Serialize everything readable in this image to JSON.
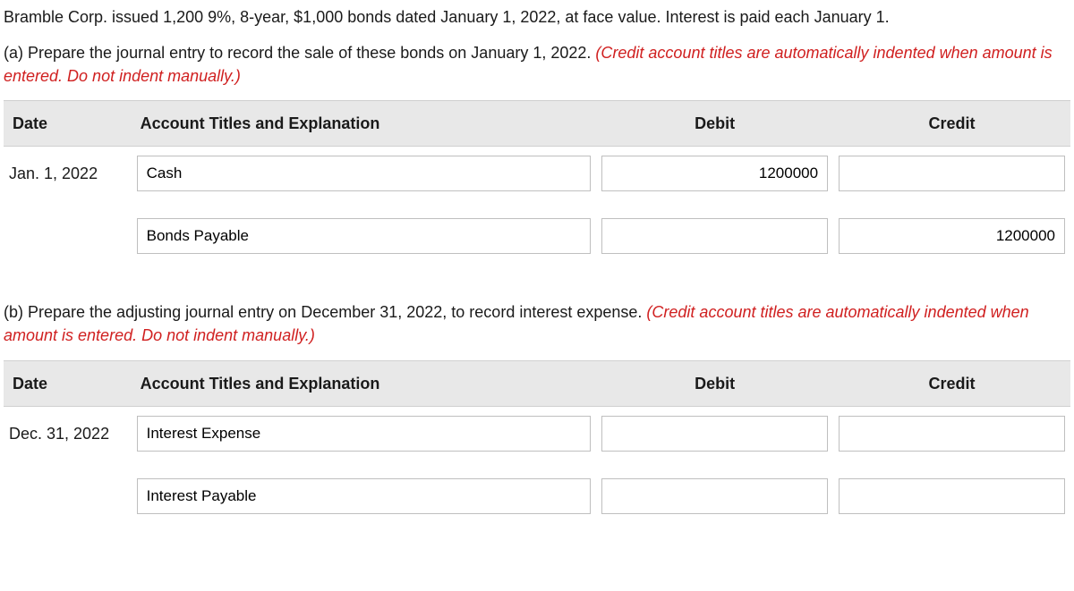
{
  "intro_text": "Bramble Corp. issued 1,200 9%, 8-year, $1,000 bonds dated January 1, 2022, at face value. Interest is paid each January 1.",
  "part_a": {
    "prefix": "(a) Prepare the journal entry to record the sale of these bonds on January 1, 2022. ",
    "red": "(Credit account titles are automatically indented when amount is entered. Do not indent manually.)"
  },
  "part_b": {
    "prefix": "(b) Prepare the adjusting journal entry on December 31, 2022, to record interest expense. ",
    "red": "(Credit account titles are automatically indented when amount is entered. Do not indent manually.)"
  },
  "headers": {
    "date": "Date",
    "account": "Account Titles and Explanation",
    "debit": "Debit",
    "credit": "Credit"
  },
  "table_a": {
    "rows": [
      {
        "date": "Jan. 1, 2022",
        "account": "Cash",
        "debit": "1200000",
        "credit": ""
      },
      {
        "date": "",
        "account": "Bonds Payable",
        "debit": "",
        "credit": "1200000"
      }
    ]
  },
  "table_b": {
    "rows": [
      {
        "date": "Dec. 31, 2022",
        "account": "Interest Expense",
        "debit": "",
        "credit": ""
      },
      {
        "date": "",
        "account": "Interest Payable",
        "debit": "",
        "credit": ""
      }
    ]
  }
}
